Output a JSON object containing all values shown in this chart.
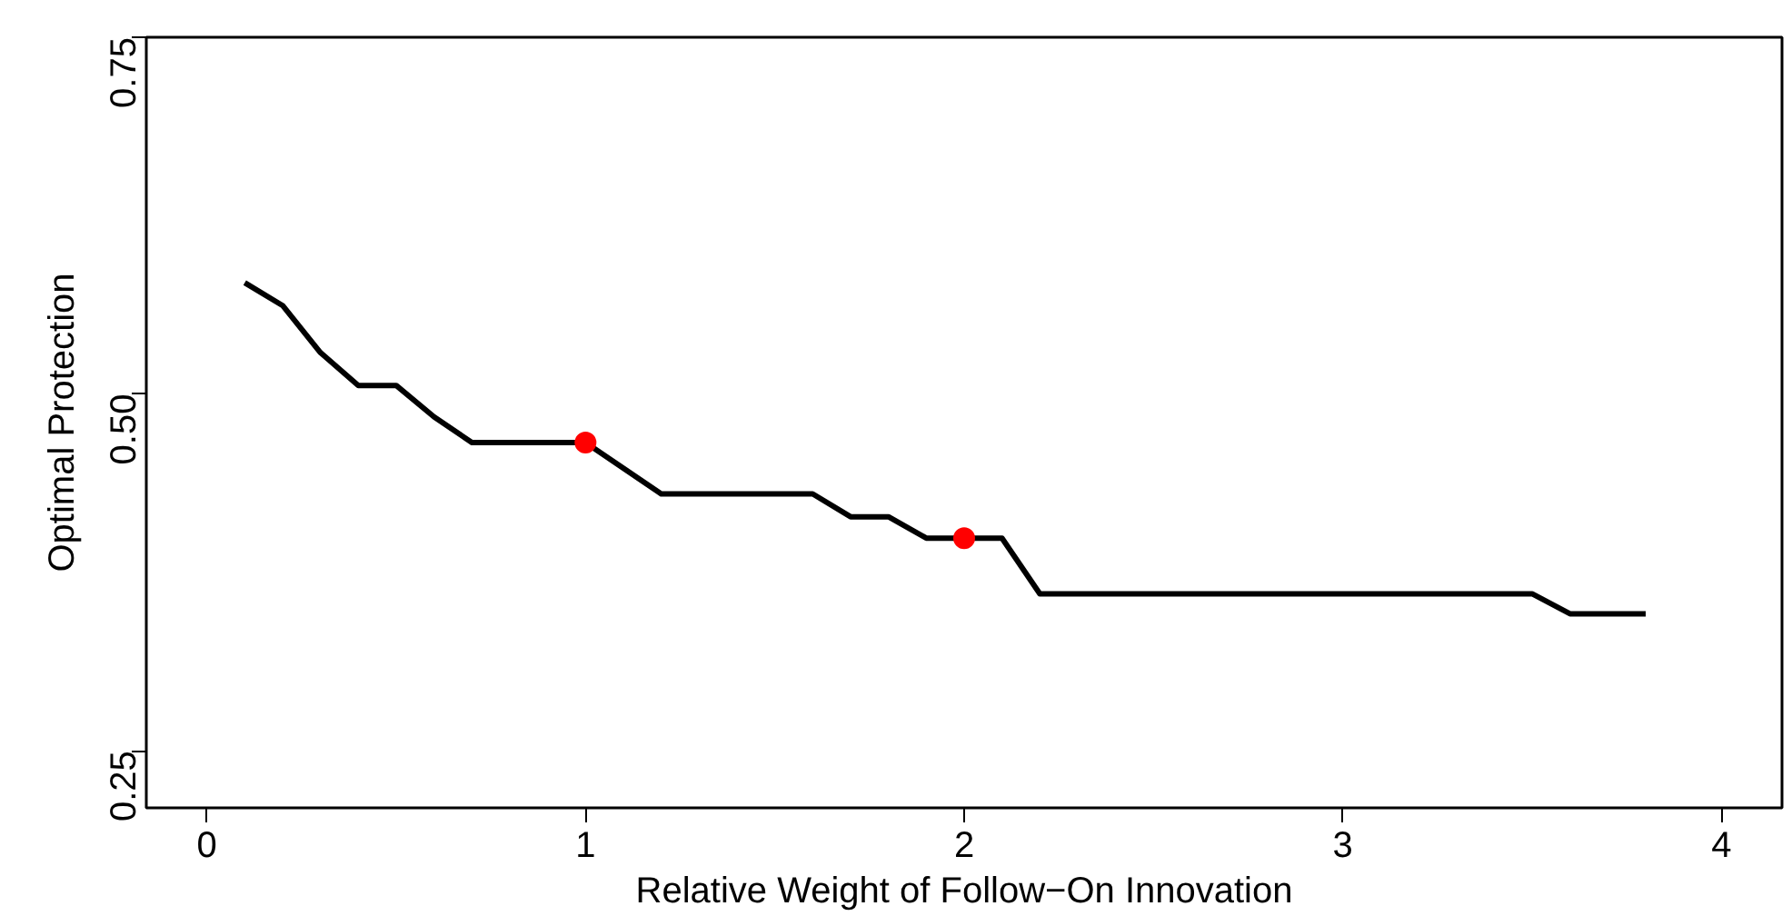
{
  "chart_data": {
    "type": "line",
    "xlabel": "Relative Weight of Follow−On Innovation",
    "ylabel": "Optimal Protection",
    "xlim": [
      -0.16,
      4.16
    ],
    "ylim": [
      0.21,
      0.75
    ],
    "xticks": [
      0,
      1,
      2,
      3,
      4
    ],
    "yticks": [
      0.25,
      {
        "value": 0.5,
        "label": "0.50"
      },
      0.75
    ],
    "grid": false,
    "series": [
      {
        "color": "#000000",
        "x": [
          0.1,
          0.2,
          0.3,
          0.4,
          0.5,
          0.6,
          0.7,
          1.0,
          1.1,
          1.2,
          1.6,
          1.7,
          1.8,
          1.9,
          2.1,
          2.2,
          3.5,
          3.6,
          3.8
        ],
        "values": [
          0.578,
          0.562,
          0.529,
          0.506,
          0.506,
          0.484,
          0.466,
          0.466,
          0.448,
          0.43,
          0.43,
          0.414,
          0.414,
          0.399,
          0.399,
          0.36,
          0.36,
          0.346,
          0.346
        ]
      },
      {
        "type": "scatter",
        "color": "#ff0000",
        "marker": "circle",
        "x": [
          1,
          2
        ],
        "values": [
          0.466,
          0.399
        ]
      }
    ]
  }
}
